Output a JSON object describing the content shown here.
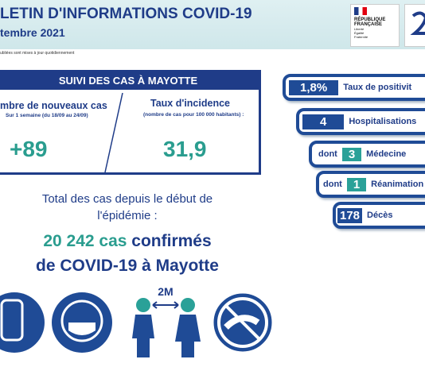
{
  "header": {
    "title": "LETIN D'INFORMATIONS COVID-19",
    "date": "tembre 2021",
    "note": "ubliées sont mises à jour quotidiennement",
    "logo": {
      "line1": "RÉPUBLIQUE",
      "line2": "FRANÇAISE",
      "motto": "Liberté Égalité Fraternité"
    }
  },
  "panel": {
    "title": "SUIVI DES CAS À MAYOTTE",
    "new_cases": {
      "label": "mbre de nouveaux cas",
      "sublabel": "Sur 1 semaine (du 18/09 au 24/09)",
      "value": "+89"
    },
    "incidence": {
      "label": "Taux d'incidence",
      "sublabel": "(nombre de cas pour 100 000 habitants) :",
      "value": "31,9"
    }
  },
  "total": {
    "intro": "Total des cas depuis le début de",
    "intro2": "l'épidémie :",
    "line1a": "20 242 cas",
    "line1b": "confirmés",
    "line2": "de COVID-19 à Mayotte"
  },
  "stats": [
    {
      "value": "1,8%",
      "label": "Taux de positivit"
    },
    {
      "value": "4",
      "label": "Hospitalisations"
    },
    {
      "prefix": "dont",
      "value": "3",
      "label": "Médecine"
    },
    {
      "prefix": "dont",
      "value": "1",
      "label": "Réanimation"
    },
    {
      "value": "178",
      "label": "Décès"
    }
  ],
  "icons": {
    "distance": "2M"
  }
}
